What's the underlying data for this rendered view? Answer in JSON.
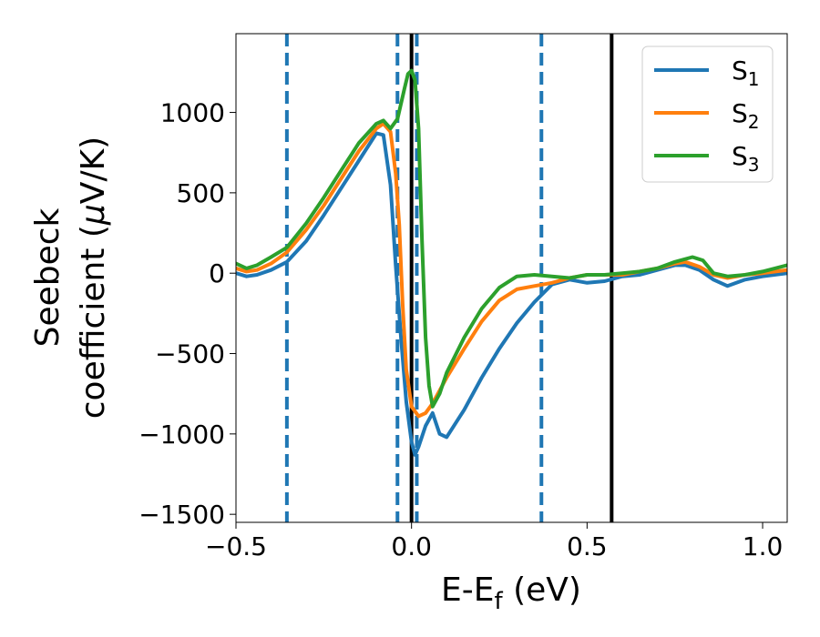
{
  "chart_data": {
    "type": "line",
    "xlabel": "E-E",
    "xlabel_sub": "f",
    "xlabel_unit": " (eV)",
    "ylabel_line1": "Seebeck",
    "ylabel_line2": "coefficient  (",
    "ylabel_mu": "μ",
    "ylabel_unit": "V/K)",
    "xlim": [
      -0.5,
      1.07
    ],
    "ylim": [
      -1550,
      1490
    ],
    "x_ticks": [
      -0.5,
      0.0,
      0.5,
      1.0
    ],
    "x_tick_labels": [
      "−0.5",
      "0.0",
      "0.5",
      "1.0"
    ],
    "y_ticks": [
      -1500,
      -1000,
      -500,
      0,
      500,
      1000
    ],
    "y_tick_labels": [
      "−1500",
      "−1000",
      "−500",
      "0",
      "500",
      "1000"
    ],
    "grid": false,
    "legend": {
      "position": "top-right"
    },
    "vlines_dashed": [
      -0.355,
      -0.04,
      0.015,
      0.37
    ],
    "vlines_solid": [
      0.0,
      0.57
    ],
    "vline_dashed_color": "#1f77b4",
    "vline_solid_color": "#000000",
    "series": [
      {
        "name": "S",
        "sub": "1",
        "color": "#1f77b4",
        "x": [
          -0.5,
          -0.47,
          -0.44,
          -0.4,
          -0.355,
          -0.3,
          -0.25,
          -0.2,
          -0.15,
          -0.1,
          -0.08,
          -0.06,
          -0.045,
          -0.03,
          -0.015,
          0.0,
          0.01,
          0.02,
          0.04,
          0.06,
          0.08,
          0.1,
          0.15,
          0.2,
          0.25,
          0.3,
          0.35,
          0.4,
          0.45,
          0.5,
          0.55,
          0.6,
          0.65,
          0.7,
          0.75,
          0.78,
          0.82,
          0.86,
          0.9,
          0.95,
          1.0,
          1.07
        ],
        "y": [
          0,
          -20,
          -10,
          20,
          70,
          200,
          360,
          530,
          700,
          870,
          860,
          550,
          50,
          -400,
          -800,
          -1050,
          -1130,
          -1080,
          -950,
          -870,
          -1000,
          -1020,
          -850,
          -650,
          -470,
          -310,
          -180,
          -70,
          -40,
          -60,
          -50,
          -20,
          -10,
          20,
          50,
          50,
          20,
          -40,
          -80,
          -40,
          -20,
          0
        ]
      },
      {
        "name": "S",
        "sub": "2",
        "color": "#ff7f0e",
        "x": [
          -0.5,
          -0.47,
          -0.44,
          -0.4,
          -0.355,
          -0.3,
          -0.25,
          -0.2,
          -0.15,
          -0.1,
          -0.08,
          -0.06,
          -0.045,
          -0.035,
          -0.025,
          -0.015,
          0.0,
          0.02,
          0.04,
          0.06,
          0.08,
          0.1,
          0.15,
          0.2,
          0.25,
          0.3,
          0.35,
          0.4,
          0.45,
          0.5,
          0.55,
          0.6,
          0.65,
          0.7,
          0.75,
          0.78,
          0.82,
          0.86,
          0.9,
          0.95,
          1.0,
          1.07
        ],
        "y": [
          30,
          10,
          20,
          60,
          130,
          270,
          420,
          590,
          760,
          900,
          930,
          880,
          620,
          300,
          -200,
          -600,
          -830,
          -890,
          -870,
          -810,
          -730,
          -650,
          -470,
          -300,
          -170,
          -100,
          -80,
          -60,
          -30,
          -10,
          -10,
          -10,
          10,
          30,
          60,
          70,
          40,
          -10,
          -30,
          -10,
          0,
          20
        ]
      },
      {
        "name": "S",
        "sub": "3",
        "color": "#2ca02c",
        "x": [
          -0.5,
          -0.47,
          -0.44,
          -0.4,
          -0.355,
          -0.3,
          -0.25,
          -0.2,
          -0.15,
          -0.1,
          -0.08,
          -0.06,
          -0.04,
          -0.02,
          -0.01,
          0.0,
          0.01,
          0.02,
          0.03,
          0.04,
          0.05,
          0.06,
          0.08,
          0.1,
          0.15,
          0.2,
          0.25,
          0.3,
          0.35,
          0.4,
          0.45,
          0.5,
          0.55,
          0.6,
          0.65,
          0.7,
          0.75,
          0.8,
          0.83,
          0.86,
          0.9,
          0.95,
          1.0,
          1.07
        ],
        "y": [
          60,
          30,
          50,
          100,
          160,
          310,
          470,
          640,
          810,
          930,
          950,
          900,
          960,
          1150,
          1240,
          1260,
          1200,
          900,
          200,
          -400,
          -700,
          -830,
          -750,
          -620,
          -400,
          -220,
          -90,
          -20,
          -10,
          -20,
          -30,
          -10,
          -10,
          0,
          10,
          30,
          70,
          100,
          80,
          0,
          -20,
          -10,
          10,
          50
        ]
      }
    ]
  }
}
